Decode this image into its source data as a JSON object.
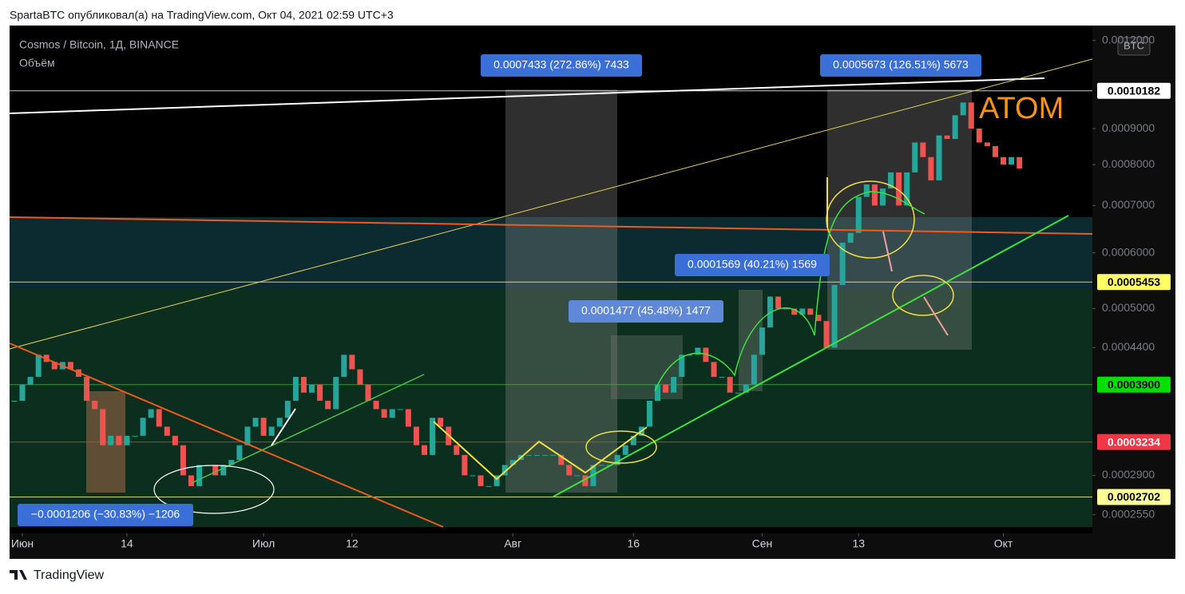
{
  "header": "SpartaBTC опубликовал(а) на TradingView.com, Окт 04, 2021 02:59 UTC+3",
  "footer": "TradingView",
  "chart_data": {
    "type": "candlestick",
    "title": "Cosmos / Bitcoin, 1Д, BINANCE",
    "subtitle": "Объём",
    "currency": "BTC",
    "annotation": "ATOM",
    "log_scale": true,
    "up_color": "#26a69a",
    "down_color": "#ef5350",
    "ylim": [
      0.00024,
      0.00126
    ],
    "yticks": [
      {
        "value": 0.0012,
        "label": "0.0012000"
      },
      {
        "value": 0.0009,
        "label": "0.0009000"
      },
      {
        "value": 0.0008,
        "label": "0.0008000"
      },
      {
        "value": 0.0007,
        "label": "0.0007000"
      },
      {
        "value": 0.0006,
        "label": "0.0006000"
      },
      {
        "value": 0.0005,
        "label": "0.0005000"
      },
      {
        "value": 0.00044,
        "label": "0.0004400"
      },
      {
        "value": 0.00029,
        "label": "0.0002900"
      },
      {
        "value": 0.000255,
        "label": "0.0002550"
      }
    ],
    "xticks": [
      {
        "value": "06-01",
        "label": "Июн"
      },
      {
        "value": "06-14",
        "label": "14"
      },
      {
        "value": "07-01",
        "label": "Июл"
      },
      {
        "value": "07-12",
        "label": "12"
      },
      {
        "value": "08-01",
        "label": "Авг"
      },
      {
        "value": "08-16",
        "label": "16"
      },
      {
        "value": "09-01",
        "label": "Сен"
      },
      {
        "value": "09-13",
        "label": "13"
      },
      {
        "value": "10-01",
        "label": "Окт"
      }
    ],
    "price_levels": [
      {
        "value": 0.0010182,
        "label": "0.0010182",
        "color": "#ffffff",
        "text_color": "#000000"
      },
      {
        "value": 0.0005453,
        "label": "0.0005453",
        "color": "#ffff66",
        "text_color": "#000000"
      },
      {
        "value": 0.00039,
        "label": "0.0003900",
        "color": "#00e000",
        "text_color": "#000000"
      },
      {
        "value": 0.0003234,
        "label": "0.0003234",
        "color": "#f23645",
        "text_color": "#ffffff"
      },
      {
        "value": 0.0002702,
        "label": "0.0002702",
        "color": "#ffff99",
        "text_color": "#000000"
      }
    ],
    "measures": [
      "0.0007433 (272.86%) 7433",
      "0.0005673 (126.51%) 5673",
      "0.0001569 (40.21%) 1569",
      "0.0001477 (45.48%) 1477",
      "−0.0001206 (−30.83%) −1206"
    ],
    "x": [
      "05-31",
      "06-01",
      "06-02",
      "06-03",
      "06-04",
      "06-05",
      "06-06",
      "06-07",
      "06-08",
      "06-09",
      "06-10",
      "06-11",
      "06-12",
      "06-13",
      "06-14",
      "06-15",
      "06-16",
      "06-17",
      "06-18",
      "06-19",
      "06-20",
      "06-21",
      "06-22",
      "06-23",
      "06-24",
      "06-25",
      "06-26",
      "06-27",
      "06-28",
      "06-29",
      "06-30",
      "07-01",
      "07-02",
      "07-03",
      "07-04",
      "07-05",
      "07-06",
      "07-07",
      "07-08",
      "07-09",
      "07-10",
      "07-11",
      "07-12",
      "07-13",
      "07-14",
      "07-15",
      "07-16",
      "07-17",
      "07-18",
      "07-19",
      "07-20",
      "07-21",
      "07-22",
      "07-23",
      "07-24",
      "07-25",
      "07-26",
      "07-27",
      "07-28",
      "07-29",
      "07-30",
      "07-31",
      "08-01",
      "08-02",
      "08-03",
      "08-04",
      "08-05",
      "08-06",
      "08-07",
      "08-08",
      "08-09",
      "08-10",
      "08-11",
      "08-12",
      "08-13",
      "08-14",
      "08-15",
      "08-16",
      "08-17",
      "08-18",
      "08-19",
      "08-20",
      "08-21",
      "08-22",
      "08-23",
      "08-24",
      "08-25",
      "08-26",
      "08-27",
      "08-28",
      "08-29",
      "08-30",
      "08-31",
      "09-01",
      "09-02",
      "09-03",
      "09-04",
      "09-05",
      "09-06",
      "09-07",
      "09-08",
      "09-09",
      "09-10",
      "09-11",
      "09-12",
      "09-13",
      "09-14",
      "09-15",
      "09-16",
      "09-17",
      "09-18",
      "09-19",
      "09-20",
      "09-21",
      "09-22",
      "09-23",
      "09-24",
      "09-25",
      "09-26",
      "09-27",
      "09-28",
      "09-29",
      "09-30",
      "10-01",
      "10-02",
      "10-03"
    ],
    "values": [
      0.00037,
      0.00039,
      0.0004,
      0.00043,
      0.00042,
      0.00041,
      0.00042,
      0.00041,
      0.0004,
      0.00037,
      0.00036,
      0.00032,
      0.00033,
      0.00032,
      0.00033,
      0.00033,
      0.00035,
      0.00036,
      0.00034,
      0.00033,
      0.00032,
      0.00029,
      0.00028,
      0.0003,
      0.0003,
      0.00029,
      0.0003,
      0.000305,
      0.00032,
      0.00034,
      0.00035,
      0.00033,
      0.00034,
      0.00035,
      0.00037,
      0.0004,
      0.00038,
      0.00039,
      0.00037,
      0.00036,
      0.0004,
      0.00043,
      0.00041,
      0.00039,
      0.00037,
      0.00036,
      0.00035,
      0.00036,
      0.00036,
      0.00034,
      0.00032,
      0.00031,
      0.00035,
      0.00034,
      0.00032,
      0.00031,
      0.00029,
      0.00029,
      0.00028,
      0.00028,
      0.00029,
      0.0003,
      0.000305,
      0.00031,
      0.00031,
      0.00031,
      0.00031,
      0.00031,
      0.0003,
      0.00029,
      0.00029,
      0.00028,
      0.0003,
      0.0003,
      0.0003,
      0.00031,
      0.00032,
      0.00033,
      0.00034,
      0.00037,
      0.00039,
      0.00038,
      0.0004,
      0.00043,
      0.00043,
      0.00044,
      0.00042,
      0.0004,
      0.0004,
      0.00038,
      0.00038,
      0.00039,
      0.00043,
      0.00047,
      0.00052,
      0.0005,
      0.0005,
      0.00049,
      0.0005,
      0.00049,
      0.00048,
      0.00044,
      0.00054,
      0.00062,
      0.00064,
      0.00072,
      0.00075,
      0.0007,
      0.00074,
      0.00078,
      0.0007,
      0.00078,
      0.00086,
      0.00082,
      0.00076,
      0.00088,
      0.00087,
      0.00094,
      0.00098,
      0.0009,
      0.00086,
      0.00085,
      0.00082,
      0.0008,
      0.00082,
      0.00079
    ]
  }
}
